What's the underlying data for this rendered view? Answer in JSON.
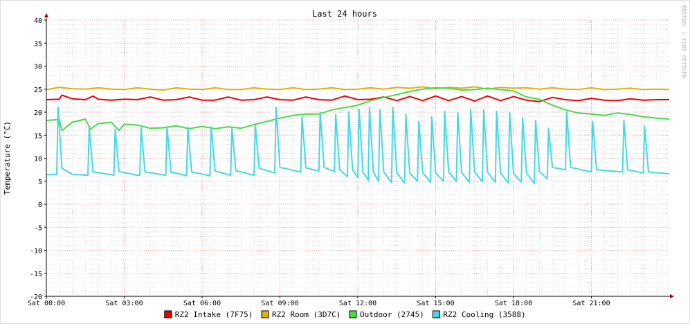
{
  "watermark": "RRDTOOL / TOBI OETIKER",
  "chart_data": {
    "type": "line",
    "title": "Last 24 hours",
    "ylabel": "Temperature (°C)",
    "xlabel": "",
    "ylim": [
      -20,
      40
    ],
    "yticks": [
      40,
      35,
      30,
      25,
      20,
      15,
      10,
      5,
      0,
      -5,
      -10,
      -15,
      -20
    ],
    "xlim": [
      0,
      24
    ],
    "xticks": [
      {
        "hour": 0,
        "label": "Sat 00:00"
      },
      {
        "hour": 3,
        "label": "Sat 03:00"
      },
      {
        "hour": 6,
        "label": "Sat 06:00"
      },
      {
        "hour": 9,
        "label": "Sat 09:00"
      },
      {
        "hour": 12,
        "label": "Sat 12:00"
      },
      {
        "hour": 15,
        "label": "Sat 15:00"
      },
      {
        "hour": 18,
        "label": "Sat 18:00"
      },
      {
        "hour": 21,
        "label": "Sat 21:00"
      }
    ],
    "grid": true,
    "legend_position": "bottom",
    "series": [
      {
        "name": "RZ2 Intake (7F75)",
        "color": "#ee0000",
        "x": [
          0,
          0.5,
          0.6,
          1,
          1.5,
          1.8,
          2,
          2.5,
          3,
          3.5,
          4,
          4.5,
          5,
          5.5,
          6,
          6.5,
          7,
          7.5,
          8,
          8.5,
          9,
          9.5,
          10,
          10.5,
          11,
          11.5,
          12,
          12.5,
          13,
          13.5,
          14,
          14.5,
          15,
          15.5,
          16,
          16.5,
          17,
          17.5,
          18,
          18.5,
          19,
          19.5,
          20,
          20.5,
          21,
          21.5,
          22,
          22.5,
          23,
          23.5,
          24
        ],
        "values": [
          22.7,
          22.8,
          23.7,
          22.9,
          22.7,
          23.5,
          22.8,
          22.6,
          22.8,
          22.7,
          23.3,
          22.6,
          22.7,
          23.3,
          22.6,
          22.6,
          23.3,
          22.6,
          22.7,
          23.3,
          22.7,
          22.6,
          23.3,
          22.7,
          22.6,
          23.5,
          22.7,
          22.8,
          23.3,
          22.5,
          23.4,
          22.5,
          23.5,
          22.5,
          23.4,
          22.4,
          23.5,
          22.5,
          23.4,
          22.6,
          22.3,
          23.2,
          22.7,
          22.5,
          23.0,
          22.6,
          22.5,
          22.9,
          22.6,
          22.7,
          22.7
        ]
      },
      {
        "name": "RZ2 Room (3D7C)",
        "color": "#e6b000",
        "x": [
          0,
          0.5,
          1,
          1.5,
          2,
          2.5,
          3,
          3.5,
          4,
          4.5,
          5,
          5.5,
          6,
          6.5,
          7,
          7.5,
          8,
          8.5,
          9,
          9.5,
          10,
          10.5,
          11,
          11.5,
          12,
          12.5,
          13,
          13.5,
          14,
          14.5,
          15,
          15.5,
          16,
          16.5,
          17,
          17.5,
          18,
          18.5,
          19,
          19.5,
          20,
          20.5,
          21,
          21.5,
          22,
          22.5,
          23,
          23.5,
          24
        ],
        "values": [
          24.9,
          25.4,
          25.1,
          25.0,
          25.3,
          25.0,
          24.9,
          25.3,
          25.0,
          24.8,
          25.3,
          25.0,
          24.9,
          25.3,
          24.9,
          24.9,
          25.3,
          25.0,
          24.9,
          25.3,
          24.9,
          25.0,
          25.3,
          24.9,
          25.0,
          25.3,
          25.0,
          25.4,
          25.2,
          25.5,
          25.1,
          25.4,
          25.2,
          25.5,
          25.0,
          25.4,
          25.2,
          25.3,
          25.0,
          25.3,
          25.0,
          24.9,
          25.3,
          24.9,
          25.0,
          25.2,
          24.9,
          25.0,
          24.9
        ]
      },
      {
        "name": "Outdoor (2745)",
        "color": "#44dd44",
        "x": [
          0,
          0.5,
          0.6,
          1,
          1.5,
          1.7,
          2,
          2.5,
          2.8,
          3,
          3.5,
          4,
          4.5,
          5,
          5.5,
          6,
          6.5,
          7,
          7.5,
          8,
          8.5,
          9,
          9.5,
          10,
          10.5,
          11,
          11.5,
          12,
          12.5,
          13,
          13.5,
          14,
          14.5,
          15,
          15.5,
          16,
          16.5,
          17,
          17.5,
          18,
          18.5,
          19,
          19.5,
          20,
          20.5,
          21,
          21.5,
          22,
          22.5,
          23,
          23.5,
          24
        ],
        "values": [
          18.2,
          18.4,
          16.0,
          17.8,
          18.5,
          16.3,
          17.5,
          17.8,
          16.0,
          17.4,
          17.2,
          16.5,
          16.6,
          17.0,
          16.4,
          16.9,
          16.4,
          16.8,
          16.5,
          17.3,
          18.0,
          18.7,
          19.3,
          19.6,
          19.6,
          20.5,
          21.0,
          21.5,
          22.5,
          23.2,
          23.8,
          24.5,
          25.0,
          25.3,
          25.2,
          24.8,
          24.9,
          25.2,
          24.9,
          24.6,
          23.3,
          22.8,
          21.5,
          20.5,
          19.8,
          19.6,
          19.3,
          19.8,
          19.5,
          19.0,
          18.7,
          18.5
        ]
      },
      {
        "name": "RZ2 Cooling (3588)",
        "color": "#44d8e8",
        "x": [
          0,
          0.4,
          0.45,
          0.6,
          1.0,
          1.6,
          1.65,
          1.8,
          2.5,
          2.6,
          2.65,
          2.8,
          3.5,
          3.6,
          3.65,
          3.8,
          4.6,
          4.65,
          4.8,
          5.4,
          5.45,
          5.6,
          6.3,
          6.35,
          6.5,
          7.1,
          7.15,
          7.3,
          8.0,
          8.05,
          8.2,
          8.8,
          8.85,
          9.0,
          9.8,
          9.85,
          10.0,
          10.5,
          10.55,
          10.7,
          11.1,
          11.15,
          11.3,
          11.6,
          11.65,
          11.8,
          12.0,
          12.05,
          12.2,
          12.4,
          12.45,
          12.6,
          12.8,
          12.85,
          13.0,
          13.3,
          13.35,
          13.5,
          13.8,
          13.85,
          14.0,
          14.3,
          14.35,
          14.5,
          14.8,
          14.85,
          15.0,
          15.3,
          15.35,
          15.5,
          15.8,
          15.85,
          16.0,
          16.3,
          16.35,
          16.5,
          16.8,
          16.85,
          17.0,
          17.3,
          17.35,
          17.5,
          17.8,
          17.85,
          18.0,
          18.3,
          18.35,
          18.5,
          18.8,
          18.85,
          19.0,
          19.3,
          19.35,
          19.5,
          20.0,
          20.05,
          20.2,
          21.0,
          21.05,
          21.2,
          22.2,
          22.25,
          22.4,
          23.0,
          23.05,
          23.2,
          24.0
        ],
        "values": [
          6.4,
          6.5,
          21.0,
          7.8,
          6.5,
          6.3,
          16.5,
          7.0,
          6.4,
          6.3,
          16.3,
          7.1,
          6.3,
          6.3,
          16.6,
          7.0,
          6.3,
          16.8,
          7.0,
          6.2,
          16.7,
          7.0,
          6.2,
          16.8,
          7.2,
          6.3,
          16.6,
          7.3,
          6.3,
          17.2,
          7.8,
          6.8,
          21.0,
          8.0,
          7.0,
          19.0,
          7.9,
          7.2,
          20.0,
          8.0,
          7.1,
          19.5,
          7.5,
          6.0,
          20.0,
          7.4,
          5.8,
          20.6,
          7.0,
          5.2,
          21.0,
          7.0,
          5.0,
          20.6,
          7.0,
          4.7,
          21.0,
          6.9,
          4.6,
          19.5,
          6.8,
          5.0,
          18.0,
          6.9,
          4.8,
          19.0,
          6.8,
          5.0,
          20.2,
          7.0,
          5.0,
          20.0,
          6.9,
          4.8,
          20.6,
          7.0,
          4.9,
          20.5,
          7.0,
          4.8,
          20.2,
          6.8,
          4.6,
          20.0,
          6.7,
          4.8,
          18.8,
          6.8,
          4.5,
          18.2,
          7.1,
          5.5,
          16.5,
          8.0,
          7.5,
          20.0,
          8.0,
          7.0,
          18.0,
          7.5,
          7.0,
          18.2,
          7.5,
          6.8,
          17.0,
          7.0,
          6.6
        ]
      }
    ]
  }
}
